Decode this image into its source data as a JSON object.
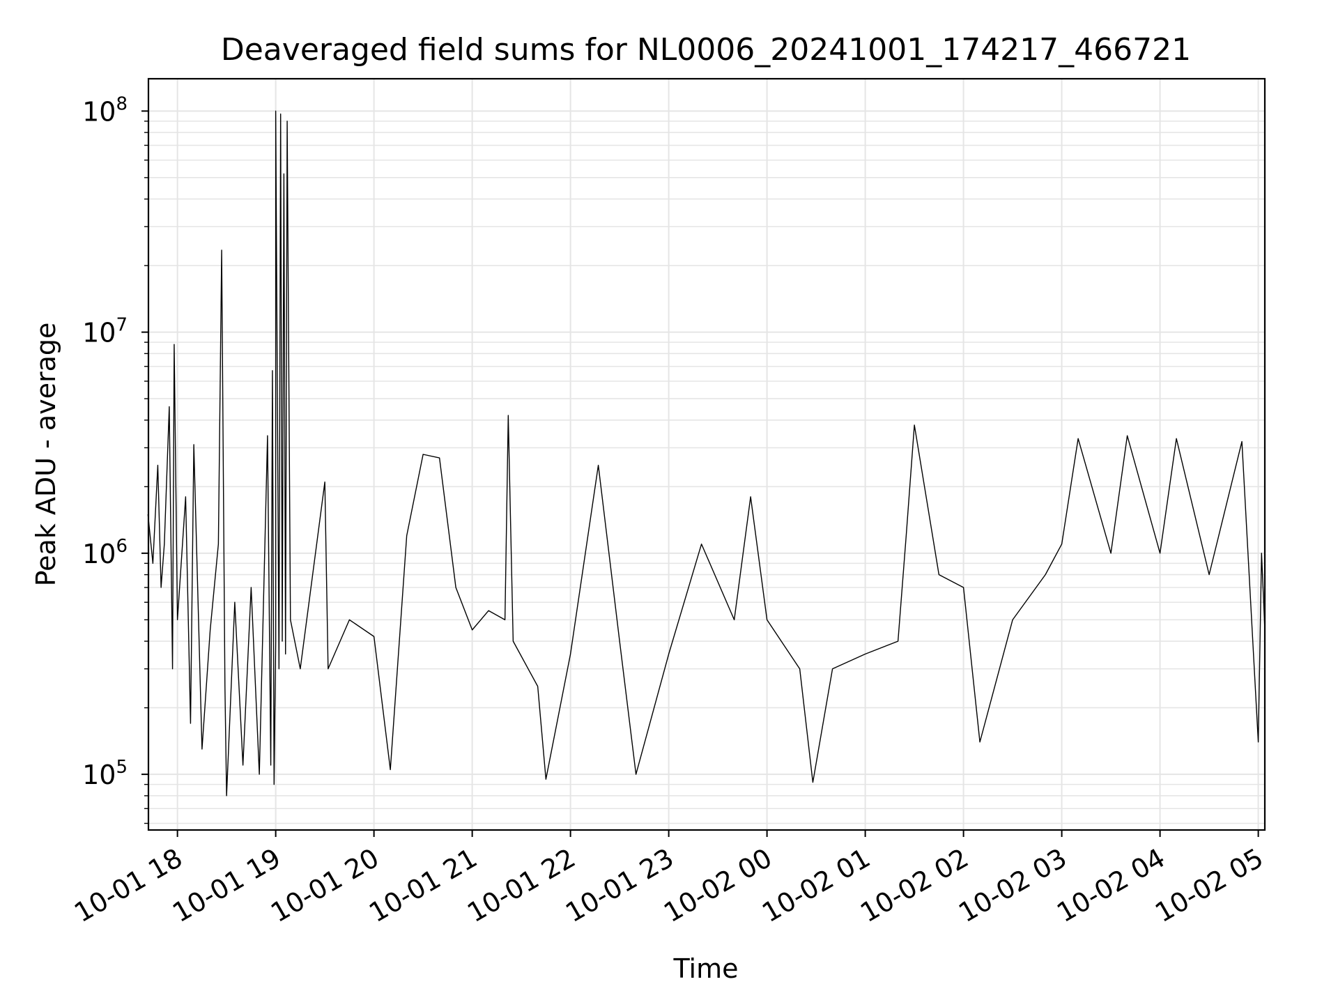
{
  "chart_data": {
    "type": "line",
    "title": "Deaveraged field sums for NL0006_20241001_174217_466721",
    "xlabel": "Time",
    "ylabel": "Peak ADU - average",
    "yscale": "log",
    "ylim": [
      56000,
      140000000
    ],
    "xlim": [
      "2024-10-01T17:42:17",
      "2024-10-02T05:04:00"
    ],
    "grid": true,
    "line_color": "#000000",
    "grid_color": "#e5e5e5",
    "x_ticks": [
      {
        "t": "2024-10-01T18:00",
        "label": "10-01 18"
      },
      {
        "t": "2024-10-01T19:00",
        "label": "10-01 19"
      },
      {
        "t": "2024-10-01T20:00",
        "label": "10-01 20"
      },
      {
        "t": "2024-10-01T21:00",
        "label": "10-01 21"
      },
      {
        "t": "2024-10-01T22:00",
        "label": "10-01 22"
      },
      {
        "t": "2024-10-01T23:00",
        "label": "10-01 23"
      },
      {
        "t": "2024-10-02T00:00",
        "label": "10-02 00"
      },
      {
        "t": "2024-10-02T01:00",
        "label": "10-02 01"
      },
      {
        "t": "2024-10-02T02:00",
        "label": "10-02 02"
      },
      {
        "t": "2024-10-02T03:00",
        "label": "10-02 03"
      },
      {
        "t": "2024-10-02T04:00",
        "label": "10-02 04"
      },
      {
        "t": "2024-10-02T05:00",
        "label": "10-02 05"
      }
    ],
    "y_ticks": [
      {
        "value": 100000,
        "base": "10",
        "exp": "5"
      },
      {
        "value": 1000000,
        "base": "10",
        "exp": "6"
      },
      {
        "value": 10000000,
        "base": "10",
        "exp": "7"
      },
      {
        "value": 100000000,
        "base": "10",
        "exp": "8"
      }
    ],
    "series": [
      {
        "points": [
          [
            "2024-10-01T17:42",
            1500000
          ],
          [
            "2024-10-01T17:45",
            900000
          ],
          [
            "2024-10-01T17:48",
            2500000
          ],
          [
            "2024-10-01T17:50",
            700000
          ],
          [
            "2024-10-01T17:52",
            1100000
          ],
          [
            "2024-10-01T17:55",
            4600000
          ],
          [
            "2024-10-01T17:57",
            300000
          ],
          [
            "2024-10-01T17:58",
            8800000
          ],
          [
            "2024-10-01T18:00",
            500000
          ],
          [
            "2024-10-01T18:05",
            1800000
          ],
          [
            "2024-10-01T18:08",
            170000
          ],
          [
            "2024-10-01T18:10",
            3100000
          ],
          [
            "2024-10-01T18:15",
            130000
          ],
          [
            "2024-10-01T18:20",
            450000
          ],
          [
            "2024-10-01T18:25",
            1100000
          ],
          [
            "2024-10-01T18:27",
            23500000
          ],
          [
            "2024-10-01T18:29",
            250000
          ],
          [
            "2024-10-01T18:30",
            80000
          ],
          [
            "2024-10-01T18:35",
            600000
          ],
          [
            "2024-10-01T18:40",
            110000
          ],
          [
            "2024-10-01T18:45",
            700000
          ],
          [
            "2024-10-01T18:50",
            100000
          ],
          [
            "2024-10-01T18:55",
            3400000
          ],
          [
            "2024-10-01T18:57",
            110000
          ],
          [
            "2024-10-01T19:00",
            400000
          ],
          [
            "2024-10-01T18:58",
            6700000
          ],
          [
            "2024-10-01T18:59",
            90000
          ],
          [
            "2024-10-01T19:00",
            100000000
          ],
          [
            "2024-10-01T19:02",
            300000
          ],
          [
            "2024-10-01T19:03",
            97000000
          ],
          [
            "2024-10-01T19:04",
            400000
          ],
          [
            "2024-10-01T19:05",
            52000000
          ],
          [
            "2024-10-01T19:06",
            350000
          ],
          [
            "2024-10-01T19:07",
            90000000
          ],
          [
            "2024-10-01T19:09",
            500000
          ],
          [
            "2024-10-01T19:15",
            300000
          ],
          [
            "2024-10-01T19:30",
            2100000
          ],
          [
            "2024-10-01T19:32",
            300000
          ],
          [
            "2024-10-01T19:45",
            500000
          ],
          [
            "2024-10-01T20:00",
            420000
          ],
          [
            "2024-10-01T20:10",
            105000
          ],
          [
            "2024-10-01T20:20",
            1200000
          ],
          [
            "2024-10-01T20:30",
            2800000
          ],
          [
            "2024-10-01T20:40",
            2700000
          ],
          [
            "2024-10-01T20:50",
            700000
          ],
          [
            "2024-10-01T21:00",
            450000
          ],
          [
            "2024-10-01T21:10",
            550000
          ],
          [
            "2024-10-01T21:20",
            500000
          ],
          [
            "2024-10-01T21:22",
            4200000
          ],
          [
            "2024-10-01T21:25",
            400000
          ],
          [
            "2024-10-01T21:40",
            250000
          ],
          [
            "2024-10-01T21:45",
            95000
          ],
          [
            "2024-10-01T22:00",
            350000
          ],
          [
            "2024-10-01T22:17",
            2500000
          ],
          [
            "2024-10-01T22:30",
            400000
          ],
          [
            "2024-10-01T22:40",
            100000
          ],
          [
            "2024-10-01T23:00",
            350000
          ],
          [
            "2024-10-01T23:20",
            1100000
          ],
          [
            "2024-10-01T23:40",
            500000
          ],
          [
            "2024-10-01T23:50",
            1800000
          ],
          [
            "2024-10-02T00:00",
            500000
          ],
          [
            "2024-10-02T00:20",
            300000
          ],
          [
            "2024-10-02T00:28",
            92000
          ],
          [
            "2024-10-02T00:40",
            300000
          ],
          [
            "2024-10-02T01:00",
            350000
          ],
          [
            "2024-10-02T01:20",
            400000
          ],
          [
            "2024-10-02T01:25",
            1200000
          ],
          [
            "2024-10-02T01:30",
            3800000
          ],
          [
            "2024-10-02T01:45",
            800000
          ],
          [
            "2024-10-02T02:00",
            700000
          ],
          [
            "2024-10-02T02:10",
            140000
          ],
          [
            "2024-10-02T02:30",
            500000
          ],
          [
            "2024-10-02T02:50",
            800000
          ],
          [
            "2024-10-02T03:00",
            1100000
          ],
          [
            "2024-10-02T03:10",
            3300000
          ],
          [
            "2024-10-02T03:30",
            1000000
          ],
          [
            "2024-10-02T03:40",
            3400000
          ],
          [
            "2024-10-02T04:00",
            1000000
          ],
          [
            "2024-10-02T04:10",
            3300000
          ],
          [
            "2024-10-02T04:30",
            800000
          ],
          [
            "2024-10-02T04:50",
            3200000
          ],
          [
            "2024-10-02T05:00",
            140000
          ],
          [
            "2024-10-02T05:02",
            1000000
          ],
          [
            "2024-10-02T05:04",
            450000
          ]
        ]
      }
    ]
  }
}
